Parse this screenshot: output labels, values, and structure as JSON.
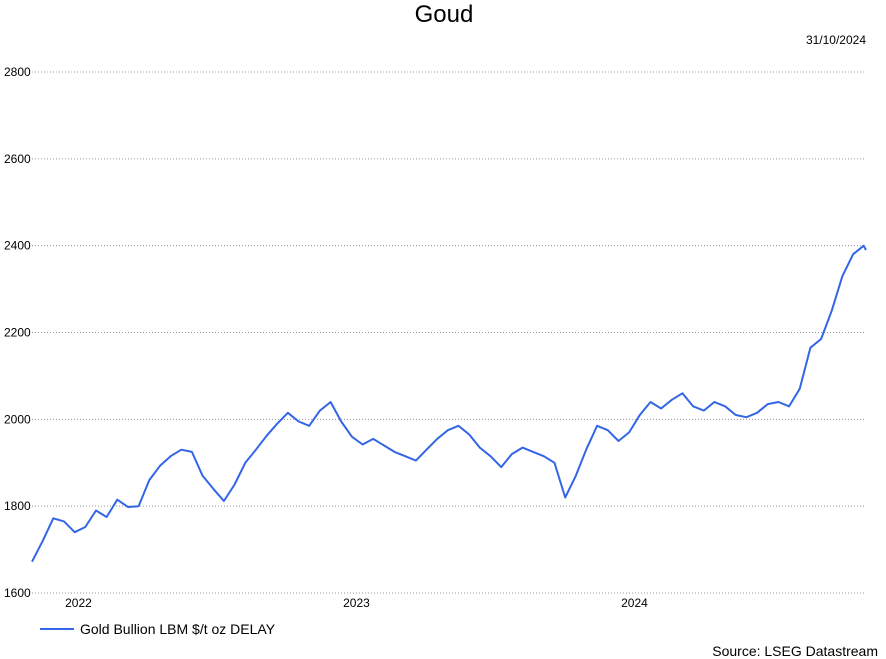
{
  "chart_data": {
    "type": "line",
    "title": "Goud",
    "date_label": "31/10/2024",
    "source": "Source: LSEG Datastream",
    "xlabel": "",
    "ylabel": "",
    "ylim": [
      1600,
      2800
    ],
    "y_ticks": [
      1600,
      1800,
      2000,
      2200,
      2400,
      2600,
      2800
    ],
    "x_range": [
      "2021-11-01",
      "2024-10-31"
    ],
    "x_ticks": [
      {
        "label": "2022",
        "date": "2022-01-01"
      },
      {
        "label": "2023",
        "date": "2023-01-01"
      },
      {
        "label": "2024",
        "date": "2024-01-01"
      }
    ],
    "grid": true,
    "legend_position": "bottom-left",
    "series": [
      {
        "name": "Gold Bullion LBM $/t oz DELAY",
        "color": "#3366e6",
        "x": [
          "2021-11-01",
          "2021-11-15",
          "2021-11-29",
          "2021-12-13",
          "2021-12-27",
          "2022-01-10",
          "2022-01-24",
          "2022-02-07",
          "2022-02-21",
          "2022-03-07",
          "2022-03-21",
          "2022-04-04",
          "2022-04-18",
          "2022-05-02",
          "2022-05-16",
          "2022-05-30",
          "2022-06-13",
          "2022-06-27",
          "2022-07-11",
          "2022-07-25",
          "2022-08-08",
          "2022-08-22",
          "2022-09-05",
          "2022-09-19",
          "2022-10-03",
          "2022-10-17",
          "2022-10-31",
          "2022-11-14",
          "2022-11-28",
          "2022-12-12",
          "2022-12-26",
          "2023-01-09",
          "2023-01-23",
          "2023-02-06",
          "2023-02-20",
          "2023-03-06",
          "2023-03-20",
          "2023-04-03",
          "2023-04-17",
          "2023-05-01",
          "2023-05-15",
          "2023-05-29",
          "2023-06-12",
          "2023-06-26",
          "2023-07-10",
          "2023-07-24",
          "2023-08-07",
          "2023-08-21",
          "2023-09-04",
          "2023-09-18",
          "2023-10-02",
          "2023-10-16",
          "2023-10-30",
          "2023-11-13",
          "2023-11-27",
          "2023-12-11",
          "2023-12-25",
          "2024-01-08",
          "2024-01-22",
          "2024-02-05",
          "2024-02-19",
          "2024-03-04",
          "2024-03-18",
          "2024-04-01",
          "2024-04-15",
          "2024-04-29",
          "2024-05-13",
          "2024-05-27",
          "2024-06-10",
          "2024-06-24",
          "2024-07-08",
          "2024-07-22",
          "2024-08-05",
          "2024-08-19",
          "2024-09-02",
          "2024-09-16",
          "2024-09-30",
          "2024-10-14",
          "2024-10-28",
          "2024-10-31"
        ],
        "values": [
          1672,
          1720,
          1772,
          1765,
          1740,
          1752,
          1790,
          1775,
          1815,
          1798,
          1800,
          1860,
          1893,
          1915,
          1930,
          1925,
          1870,
          1840,
          1812,
          1850,
          1900,
          1930,
          1962,
          1990,
          2015,
          1995,
          1985,
          2020,
          2040,
          1995,
          1960,
          1942,
          1955,
          1940,
          1925,
          1915,
          1905,
          1930,
          1955,
          1975,
          1985,
          1965,
          1935,
          1915,
          1890,
          1920,
          1935,
          1925,
          1915,
          1900,
          1820,
          1870,
          1932,
          1985,
          1975,
          1950,
          1970,
          2010,
          2040,
          2025,
          2045,
          2060,
          2030,
          2020,
          2040,
          2030,
          2010,
          2005,
          2015,
          2035,
          2040,
          2030,
          2070,
          2165,
          2185,
          2250,
          2330,
          2380,
          2400,
          2390
        ],
        "note": ""
      }
    ]
  }
}
